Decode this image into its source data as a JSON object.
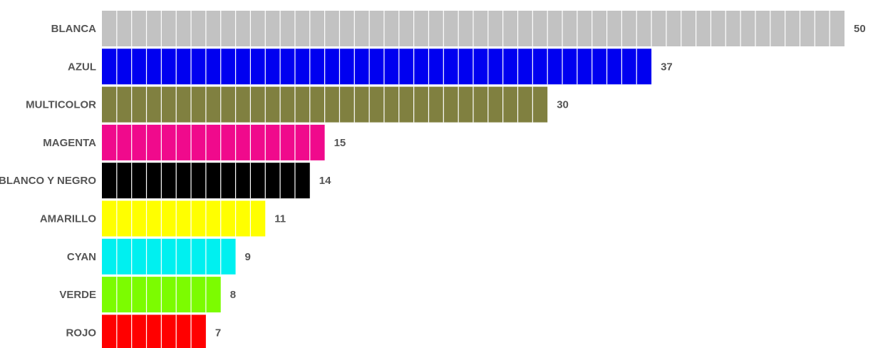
{
  "chart_data": {
    "type": "bar",
    "orientation": "horizontal",
    "title": "",
    "xlabel": "",
    "ylabel": "",
    "xlim": [
      0,
      50
    ],
    "grid": false,
    "legend": "none",
    "categories": [
      "BLANCA",
      "AZUL",
      "MULTICOLOR",
      "MAGENTA",
      "BLANCO Y NEGRO",
      "AMARILLO",
      "CYAN",
      "VERDE",
      "ROJO"
    ],
    "values": [
      50,
      37,
      30,
      15,
      14,
      11,
      9,
      8,
      7
    ],
    "value_labels": [
      "50",
      "37",
      "30",
      "15",
      "14",
      "11",
      "9",
      "8",
      "7"
    ],
    "colors": [
      "#c2c2c2",
      "#0000f0",
      "#808040",
      "#f00a8c",
      "#000000",
      "#ffff00",
      "#00f0f0",
      "#7cfc00",
      "#ff0000"
    ],
    "bar_style": "segmented, one block per unit"
  }
}
